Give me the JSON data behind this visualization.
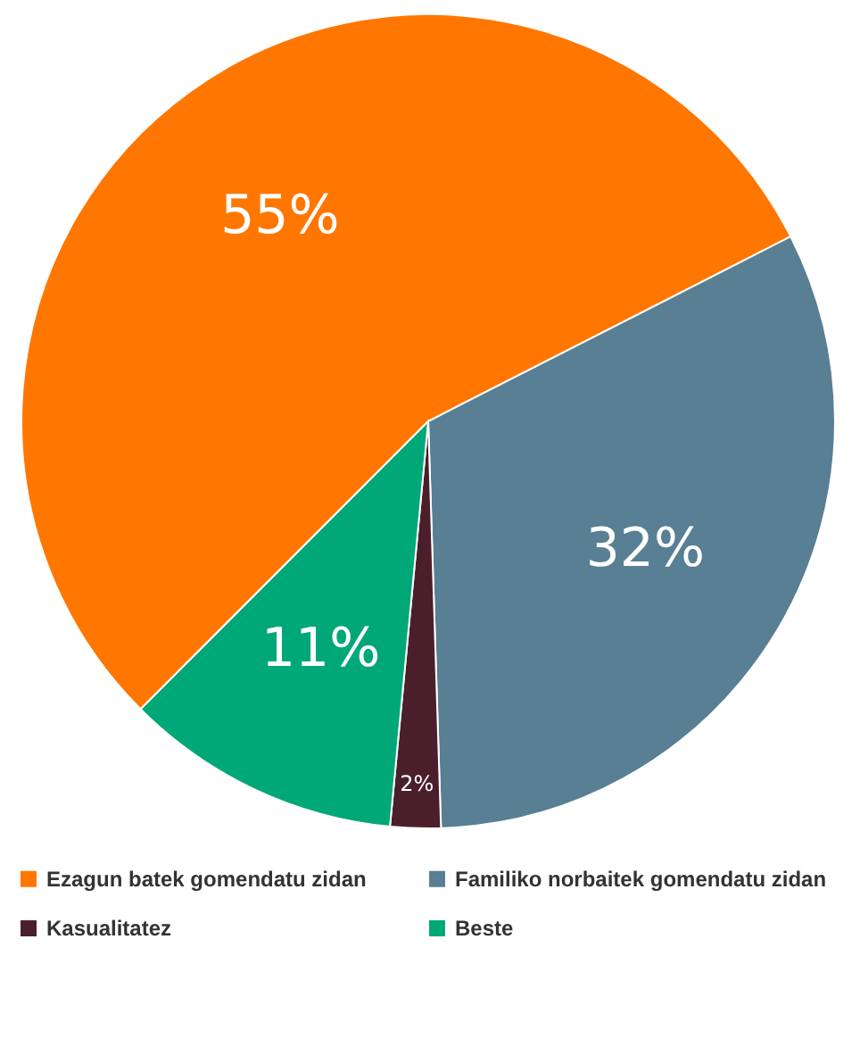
{
  "chart_data": {
    "type": "pie",
    "categories": [
      "Ezagun batek gomendatu zidan",
      "Familiko norbaitek gomendatu zidan",
      "Kasualitatez",
      "Beste"
    ],
    "values": [
      55,
      32,
      2,
      11
    ],
    "colors": [
      "#ff7700",
      "#587f93",
      "#4a1f2b",
      "#00a878"
    ],
    "value_labels": [
      "55%",
      "32%",
      "2%",
      "11%"
    ],
    "legend": "bottom"
  }
}
